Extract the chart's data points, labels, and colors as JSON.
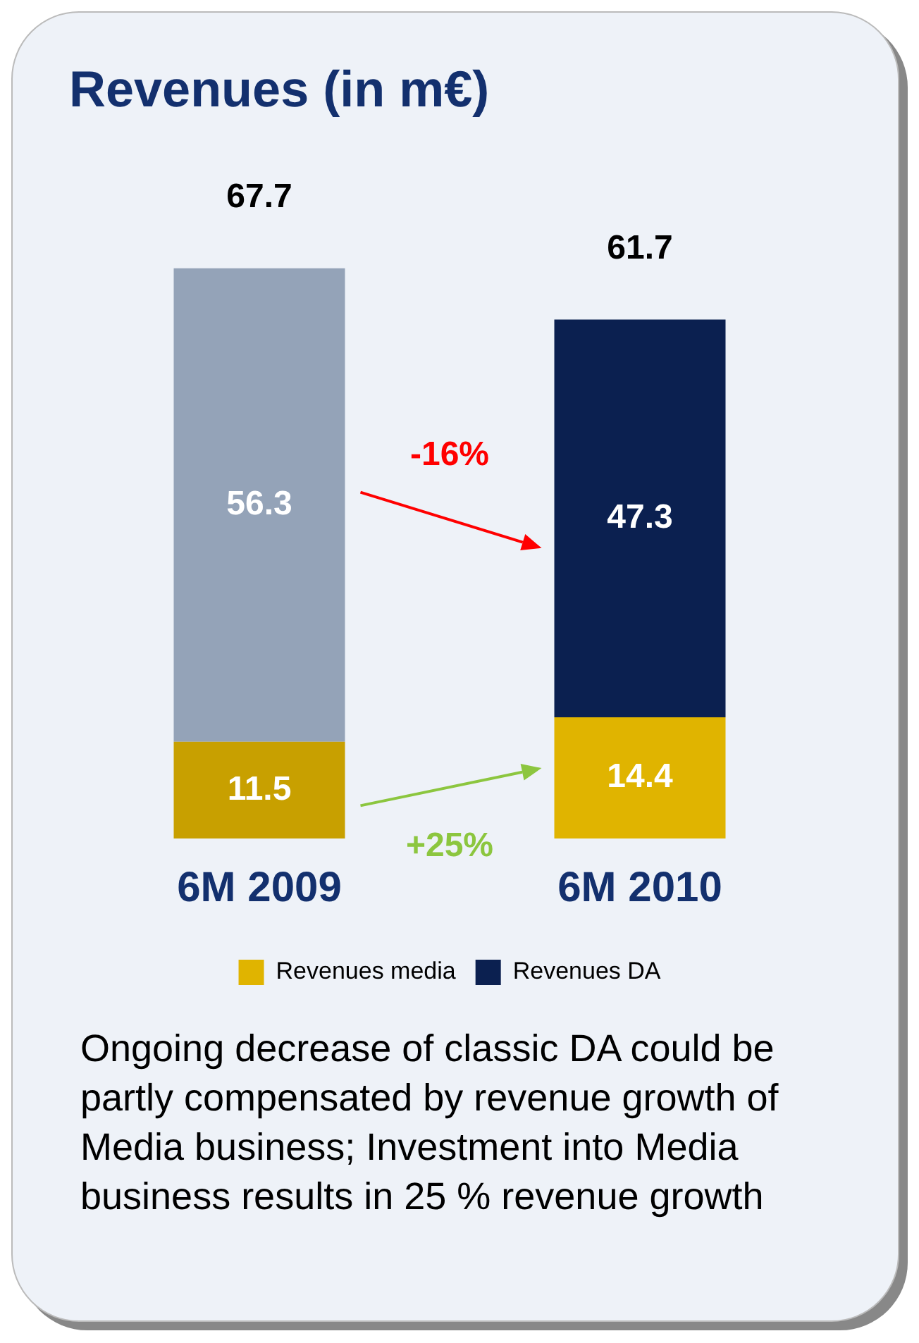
{
  "chart_data": {
    "type": "bar",
    "title": "Revenues (in m€)",
    "categories": [
      "6M 2009",
      "6M 2010"
    ],
    "stacked": true,
    "series": [
      {
        "name": "Revenues media",
        "color": "#e0b400",
        "colors": [
          "#c8a000",
          "#e0b400"
        ],
        "values": [
          11.5,
          14.4
        ]
      },
      {
        "name": "Revenues DA",
        "color": "#0b2050",
        "colors": [
          "#94a3b8",
          "#0b2050"
        ],
        "values": [
          56.3,
          47.3
        ]
      }
    ],
    "data_labels": true,
    "totals": [
      "67.7",
      "61.7"
    ],
    "legend": "bottom",
    "grid": false,
    "annotations": [
      "-16%",
      "+25%",
      "Ongoing decrease of classic DA could be partly compensated by revenue growth of Media business; Investment into Media business results in 25 % revenue growth"
    ]
  }
}
